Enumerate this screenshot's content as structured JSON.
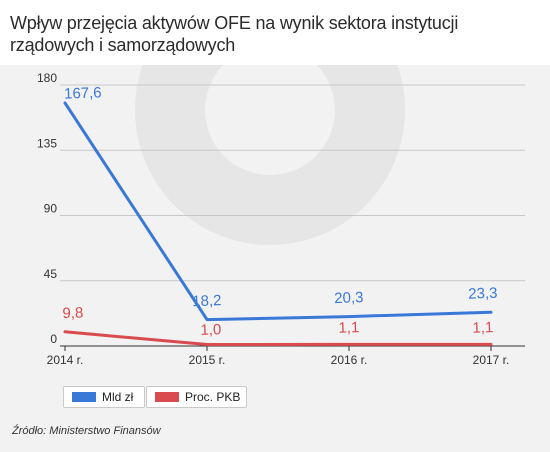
{
  "title": "Wpływ przejęcia aktywów OFE na wynik sektora instytucji rządowych i samorządowych",
  "source": "Źródło: Ministerstwo Finansów",
  "colors": {
    "series1": "#3a78d8",
    "series2": "#d94b4f",
    "grid": "#c8c8c8",
    "background": "#f2f2f2"
  },
  "chart_data": {
    "type": "line",
    "title": "Wpływ przejęcia aktywów OFE na wynik sektora instytucji rządowych i samorządowych",
    "categories": [
      "2014 r.",
      "2015 r.",
      "2016 r.",
      "2017 r."
    ],
    "y_ticks": [
      "0",
      "45",
      "90",
      "135",
      "180"
    ],
    "ylim": [
      0,
      180
    ],
    "grid": true,
    "legend_position": "bottom-left",
    "series": [
      {
        "name": "Mld zł",
        "values": [
          167.6,
          18.2,
          20.3,
          23.3
        ],
        "labels": [
          "167,6",
          "18,2",
          "20,3",
          "23,3"
        ],
        "color": "#3a78d8"
      },
      {
        "name": "Proc. PKB",
        "values": [
          9.8,
          1.0,
          1.1,
          1.1
        ],
        "labels": [
          "9,8",
          "1,0",
          "1,1",
          "1,1"
        ],
        "color": "#d94b4f"
      }
    ]
  }
}
